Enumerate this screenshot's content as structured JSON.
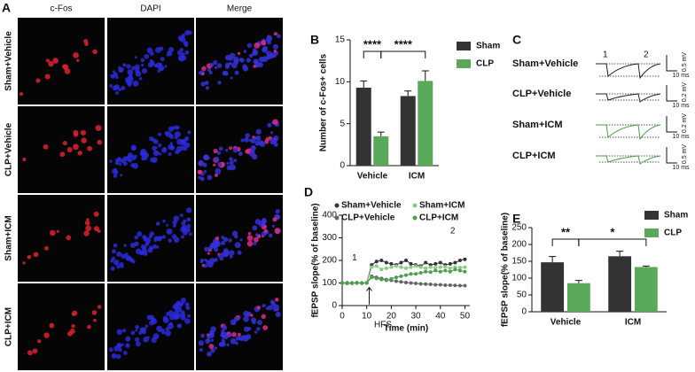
{
  "panel_a": {
    "label": "A",
    "columns": [
      "c-Fos",
      "DAPI",
      "Merge"
    ],
    "rows": [
      "Sham+Vehicle",
      "CLP+Vehicle",
      "Sham+ICM",
      "CLP+ICM"
    ]
  },
  "panel_c": {
    "label": "C",
    "peaks": [
      "1",
      "2"
    ],
    "rows": [
      "Sham+Vehicle",
      "CLP+Vehicle",
      "Sham+ICM",
      "CLP+ICM"
    ],
    "scales": [
      [
        "0.5 mV",
        "10 ms"
      ],
      [
        "0.2 mV",
        "10 ms"
      ],
      [
        "0.2 mV",
        "10 ms"
      ],
      [
        "0.5 mV",
        "10 ms"
      ]
    ]
  },
  "chart_data": [
    {
      "type": "bar",
      "panel_label": "B",
      "ylabel": "Number of c-Fos+ cells",
      "categories": [
        "Vehicle",
        "ICM"
      ],
      "series": [
        {
          "name": "Sham",
          "color": "#333333",
          "values": [
            9.3,
            8.3
          ],
          "errors": [
            0.8,
            0.6
          ]
        },
        {
          "name": "CLP",
          "color": "#5aa85a",
          "values": [
            3.5,
            10.1
          ],
          "errors": [
            0.5,
            1.2
          ]
        }
      ],
      "ylim": [
        0,
        15
      ],
      "yticks": [
        0,
        5,
        10,
        15
      ],
      "significance": [
        "****",
        "****"
      ]
    },
    {
      "type": "line",
      "panel_label": "D",
      "ylabel": "fEPSP slope(% of baseline)",
      "xlabel": "Time (min)",
      "annotations": [
        "1",
        "2",
        "HFS"
      ],
      "x": [
        0,
        2,
        4,
        6,
        8,
        10,
        12,
        14,
        16,
        18,
        20,
        22,
        24,
        26,
        28,
        30,
        32,
        34,
        36,
        38,
        40,
        42,
        44,
        46,
        48,
        50
      ],
      "series": [
        {
          "name": "Sham+Vehicle",
          "color": "#333333",
          "values": [
            100,
            98,
            100,
            101,
            99,
            100,
            180,
            195,
            200,
            190,
            185,
            180,
            190,
            200,
            185,
            180,
            175,
            190,
            180,
            185,
            190,
            180,
            185,
            190,
            200,
            205
          ]
        },
        {
          "name": "Sham+ICM",
          "color": "#8cc88c",
          "values": [
            100,
            99,
            101,
            100,
            100,
            99,
            170,
            175,
            160,
            165,
            170,
            175,
            170,
            165,
            170,
            175,
            170,
            165,
            170,
            168,
            170,
            172,
            165,
            170,
            168,
            170
          ]
        },
        {
          "name": "CLP+Vehicle",
          "color": "#666666",
          "values": [
            100,
            101,
            99,
            100,
            100,
            101,
            130,
            125,
            120,
            115,
            112,
            108,
            105,
            102,
            100,
            98,
            96,
            95,
            94,
            92,
            92,
            90,
            90,
            89,
            88,
            88
          ]
        },
        {
          "name": "CLP+ICM",
          "color": "#4f9e4f",
          "values": [
            100,
            100,
            99,
            101,
            100,
            100,
            125,
            120,
            115,
            112,
            118,
            125,
            130,
            135,
            140,
            140,
            145,
            150,
            148,
            155,
            150,
            155,
            150,
            160,
            155,
            150
          ]
        }
      ],
      "xlim": [
        0,
        52
      ],
      "xticks": [
        0,
        10,
        20,
        30,
        40,
        50
      ],
      "ylim": [
        0,
        400
      ],
      "yticks": [
        0,
        100,
        200,
        300,
        400
      ]
    },
    {
      "type": "bar",
      "panel_label": "E",
      "ylabel": "fEPSP slope(% of baseline)",
      "categories": [
        "Vehicle",
        "ICM"
      ],
      "series": [
        {
          "name": "Sham",
          "color": "#333333",
          "values": [
            147,
            165
          ],
          "errors": [
            17,
            15
          ]
        },
        {
          "name": "CLP",
          "color": "#5aa85a",
          "values": [
            85,
            133
          ],
          "errors": [
            8,
            3
          ]
        }
      ],
      "ylim": [
        0,
        250
      ],
      "yticks": [
        0,
        50,
        100,
        150,
        200,
        250
      ],
      "significance": [
        "**",
        "*"
      ]
    }
  ]
}
